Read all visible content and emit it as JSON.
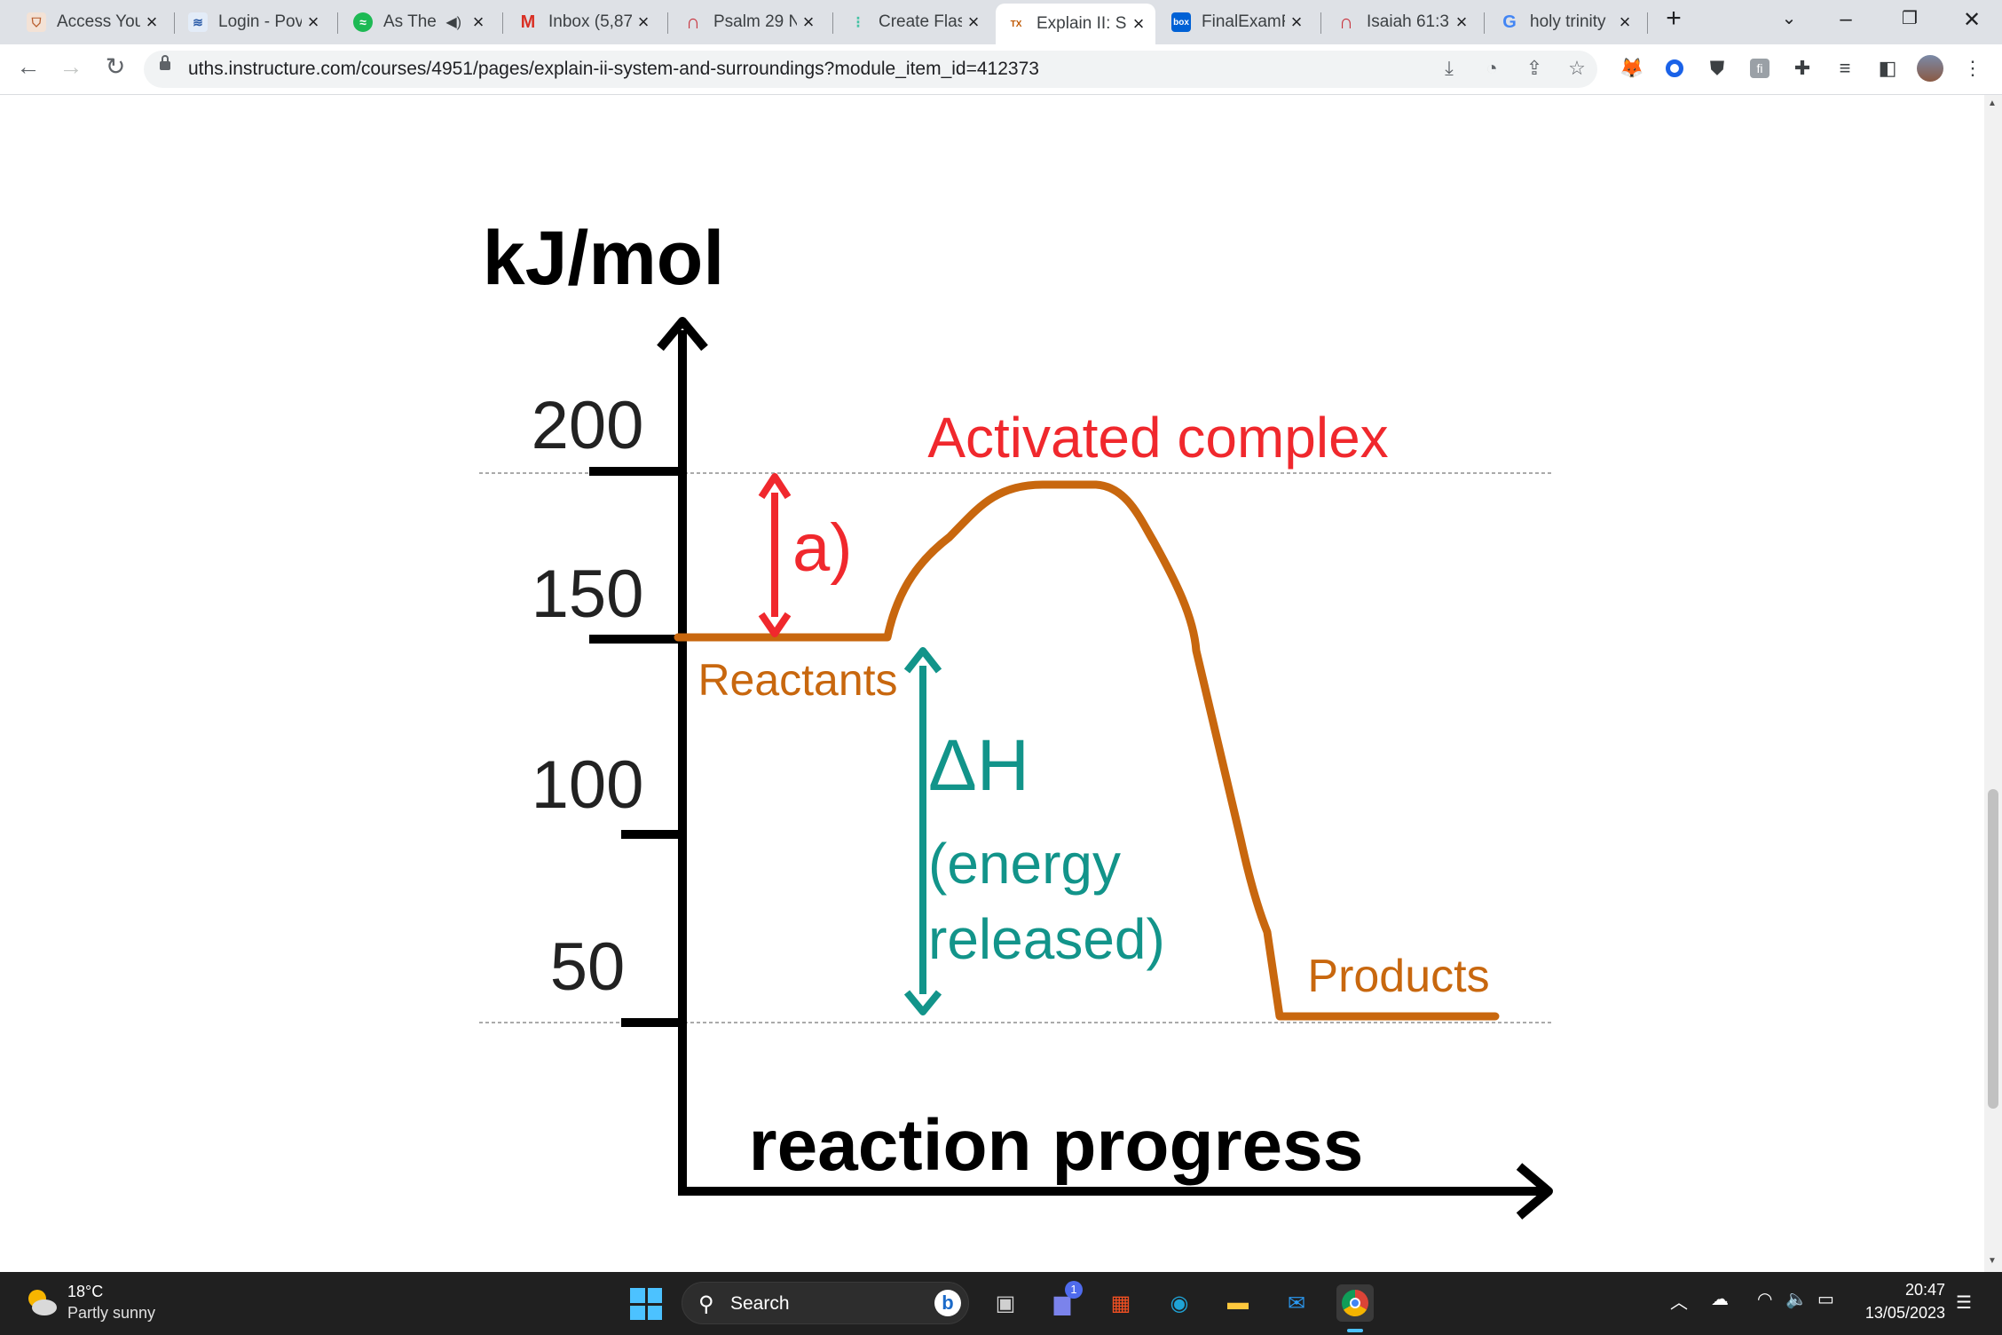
{
  "browser": {
    "tabs": [
      {
        "title": "Access You",
        "icon": "shield-crest-icon",
        "color": "#b85c2c"
      },
      {
        "title": "Login - Pov",
        "icon": "powerschool-icon",
        "color": "#2a5ba8"
      },
      {
        "title": "As The",
        "icon": "spotify-icon",
        "color": "#1db954",
        "audio": "speaker-icon"
      },
      {
        "title": "Inbox (5,87",
        "icon": "gmail-icon",
        "color": "#d93025"
      },
      {
        "title": "Psalm 29 N",
        "icon": "bible-gateway-icon",
        "color": "#c8323c"
      },
      {
        "title": "Create Flas",
        "icon": "quizlet-icon",
        "color": "#45c2a4"
      },
      {
        "title": "Explain II: S",
        "icon": "texas-uth-icon",
        "color": "#bf5700",
        "active": true
      },
      {
        "title": "FinalExamF",
        "icon": "box-icon",
        "color": "#0061d5"
      },
      {
        "title": "Isaiah 61:3",
        "icon": "bible-gateway-icon",
        "color": "#c8323c"
      },
      {
        "title": "holy trinity",
        "icon": "google-icon",
        "color": "#4285f4"
      }
    ],
    "new_tab_glyph": "+",
    "url": "uths.instructure.com/courses/4951/pages/explain-ii-system-and-surroundings?module_item_id=412373"
  },
  "diagram": {
    "y_axis_label": "kJ/mol",
    "x_axis_label": "reaction progress",
    "y_ticks": [
      "200",
      "150",
      "100",
      "50"
    ],
    "activated_complex_label": "Activated complex",
    "activation_energy_label": "a)",
    "reactants_label": "Reactants",
    "enthalpy_label": "ΔH",
    "enthalpy_note_line1": "(energy",
    "enthalpy_note_line2": "released)",
    "products_label": "Products",
    "colors": {
      "curve": "#c8670e",
      "activated": "#f0282d",
      "enthalpy": "#12948a",
      "axis": "#000000",
      "tick_label": "#222222"
    }
  },
  "taskbar": {
    "weather_temp": "18°C",
    "weather_desc": "Partly sunny",
    "search_label": "Search",
    "time": "20:47",
    "date": "13/05/2023",
    "chat_badge": "1"
  }
}
